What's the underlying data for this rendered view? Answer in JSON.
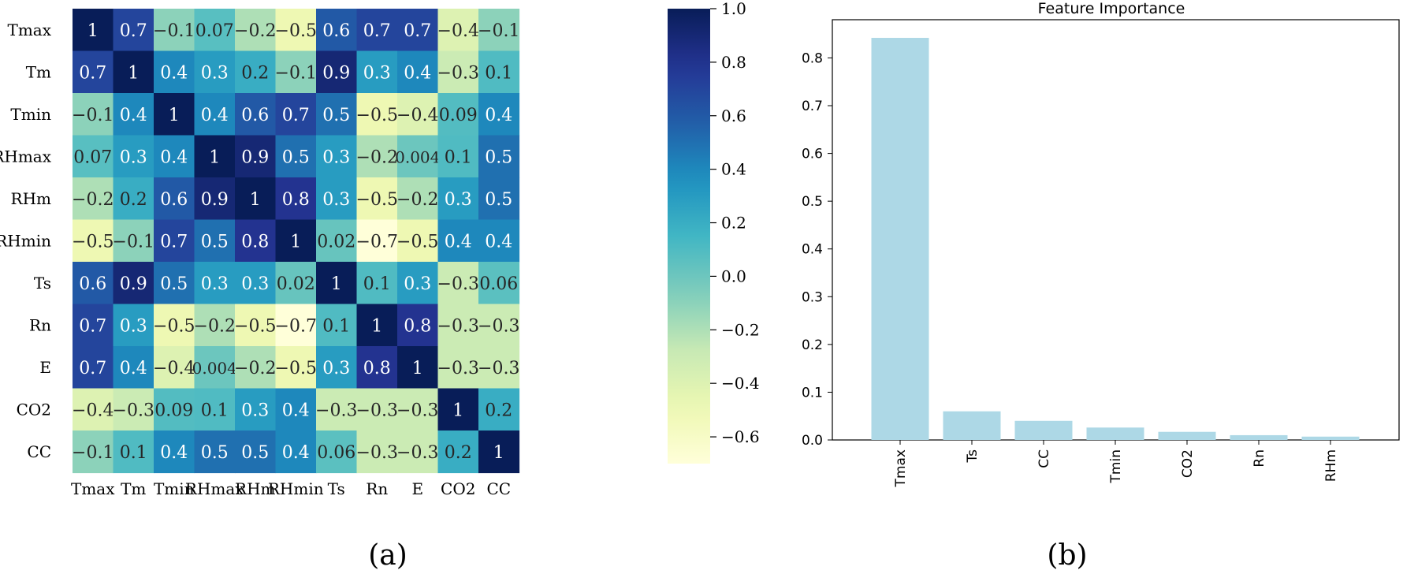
{
  "panels": {
    "a_label": "(a)",
    "b_label": "(b)"
  },
  "chart_data": [
    {
      "type": "heatmap",
      "title": "",
      "xlabel": "",
      "ylabel": "",
      "categories": [
        "Tmax",
        "Tm",
        "Tmin",
        "RHmax",
        "RHm",
        "RHmin",
        "Ts",
        "Rn",
        "E",
        "CO2",
        "CC"
      ],
      "cell_labels": [
        [
          "1",
          "0.7",
          "-0.1",
          "0.07",
          "-0.2",
          "-0.5",
          "0.6",
          "0.7",
          "0.7",
          "-0.4",
          "-0.1"
        ],
        [
          "0.7",
          "1",
          "0.4",
          "0.3",
          "0.2",
          "-0.1",
          "0.9",
          "0.3",
          "0.4",
          "-0.3",
          "0.1"
        ],
        [
          "-0.1",
          "0.4",
          "1",
          "0.4",
          "0.6",
          "0.7",
          "0.5",
          "-0.5",
          "-0.4",
          "0.09",
          "0.4"
        ],
        [
          "0.07",
          "0.3",
          "0.4",
          "1",
          "0.9",
          "0.5",
          "0.3",
          "-0.2",
          "0.004",
          "0.1",
          "0.5"
        ],
        [
          "-0.2",
          "0.2",
          "0.6",
          "0.9",
          "1",
          "0.8",
          "0.3",
          "-0.5",
          "-0.2",
          "0.3",
          "0.5"
        ],
        [
          "-0.5",
          "-0.1",
          "0.7",
          "0.5",
          "0.8",
          "1",
          "0.02",
          "-0.7",
          "-0.5",
          "0.4",
          "0.4"
        ],
        [
          "0.6",
          "0.9",
          "0.5",
          "0.3",
          "0.3",
          "0.02",
          "1",
          "0.1",
          "0.3",
          "-0.3",
          "0.06"
        ],
        [
          "0.7",
          "0.3",
          "-0.5",
          "-0.2",
          "-0.5",
          "-0.7",
          "0.1",
          "1",
          "0.8",
          "-0.3",
          "-0.3"
        ],
        [
          "0.7",
          "0.4",
          "-0.4",
          "0.004",
          "-0.2",
          "-0.5",
          "0.3",
          "0.8",
          "1",
          "-0.3",
          "-0.3"
        ],
        [
          "-0.4",
          "-0.3",
          "0.09",
          "0.1",
          "0.3",
          "0.4",
          "-0.3",
          "-0.3",
          "-0.3",
          "1",
          "0.2"
        ],
        [
          "-0.1",
          "0.1",
          "0.4",
          "0.5",
          "0.5",
          "0.4",
          "0.06",
          "-0.3",
          "-0.3",
          "0.2",
          "1"
        ]
      ],
      "colorbar": {
        "colormap": "YlGnBu",
        "range": [
          -0.7,
          1.0
        ],
        "ticks": [
          1.0,
          0.8,
          0.6,
          0.4,
          0.2,
          0.0,
          -0.2,
          -0.4,
          -0.6
        ],
        "tick_labels": [
          "1.0",
          "0.8",
          "0.6",
          "0.4",
          "0.2",
          "0.0",
          "−0.2",
          "−0.4",
          "−0.6"
        ]
      },
      "colormap_stops": [
        "#ffffd9",
        "#edf8b1",
        "#c7e9b4",
        "#7fcdbb",
        "#41b6c4",
        "#1d91c0",
        "#225ea8",
        "#253494",
        "#081d58"
      ]
    },
    {
      "type": "bar",
      "title": "Feature Importance",
      "xlabel": "",
      "ylabel": "",
      "categories": [
        "Tmax",
        "Ts",
        "CC",
        "Tmin",
        "CO2",
        "Rn",
        "RHm"
      ],
      "values": [
        0.842,
        0.06,
        0.04,
        0.026,
        0.017,
        0.01,
        0.007
      ],
      "ylim": [
        0,
        0.88
      ],
      "yticks": [
        0.0,
        0.1,
        0.2,
        0.3,
        0.4,
        0.5,
        0.6,
        0.7,
        0.8
      ],
      "ytick_labels": [
        "0.0",
        "0.1",
        "0.2",
        "0.3",
        "0.4",
        "0.5",
        "0.6",
        "0.7",
        "0.8"
      ],
      "bar_color": "#add8e6",
      "grid": false
    }
  ]
}
